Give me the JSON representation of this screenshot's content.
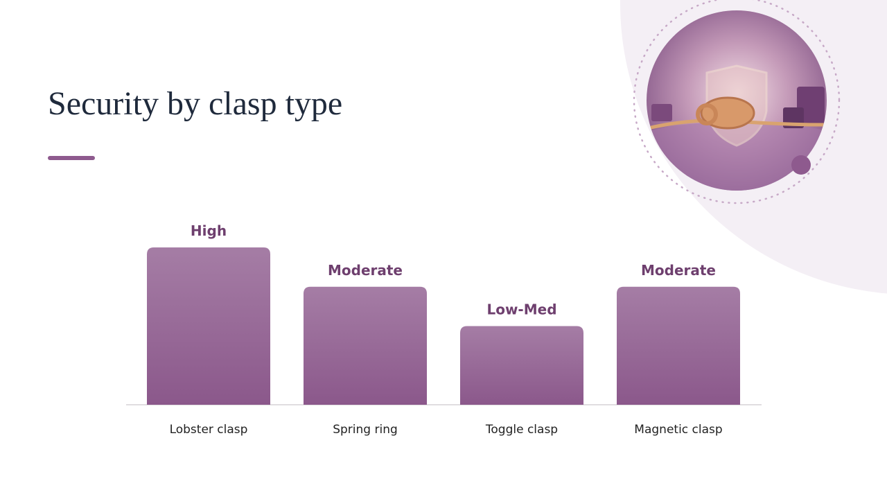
{
  "chart_data": {
    "type": "bar",
    "title": "Security by clasp type",
    "categories": [
      "Lobster clasp",
      "Spring ring",
      "Toggle clasp",
      "Magnetic clasp"
    ],
    "values": [
      4,
      3,
      2,
      3
    ],
    "value_labels": [
      "High",
      "Moderate",
      "Low-Med",
      "Moderate"
    ],
    "color": "#8e5a8e"
  }
}
